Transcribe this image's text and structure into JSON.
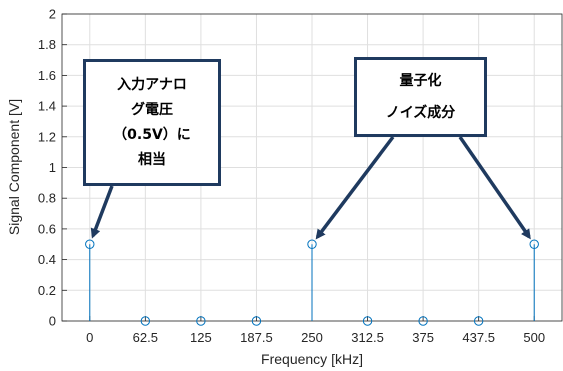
{
  "chart_data": {
    "type": "stem",
    "xlabel": "Frequency [kHz]",
    "ylabel": "Signal Component [V]",
    "x": [
      0,
      62.5,
      125,
      187.5,
      250,
      312.5,
      375,
      437.5,
      500
    ],
    "values": [
      0.5,
      0,
      0,
      0,
      0.5,
      0,
      0,
      0,
      0.5
    ],
    "x_ticks": [
      "0",
      "62.5",
      "125",
      "187.5",
      "250",
      "312.5",
      "375",
      "437.5",
      "500"
    ],
    "y_ticks": [
      "0",
      "0.2",
      "0.4",
      "0.6",
      "0.8",
      "1",
      "1.2",
      "1.4",
      "1.6",
      "1.8",
      "2"
    ],
    "xlim": [
      -31.25,
      531.25
    ],
    "ylim": [
      0,
      2
    ],
    "grid": true,
    "series_color": "#0072BD",
    "annotations": [
      {
        "lines": [
          "入力アナロ",
          "グ電圧",
          "（0.5V）に",
          "相当"
        ],
        "points_to": [
          0
        ]
      },
      {
        "lines": [
          "量子化",
          "ノイズ成分"
        ],
        "points_to": [
          250,
          500
        ]
      }
    ],
    "annotation_border_color": "#1f3a5f"
  }
}
